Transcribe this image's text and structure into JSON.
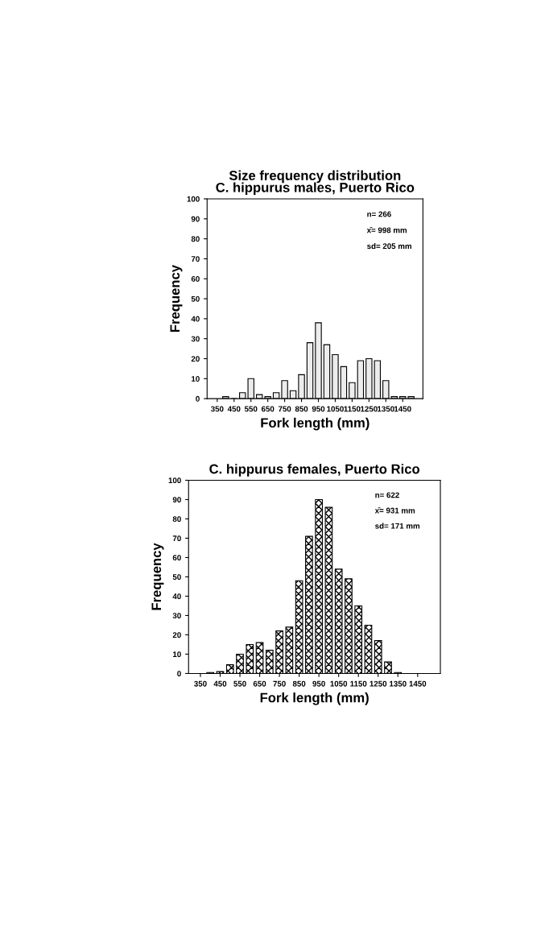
{
  "chart_data": [
    {
      "type": "bar",
      "title": "Size frequency distribution",
      "subtitle": "C. hippurus males, Puerto Rico",
      "xlabel": "Fork length (mm)",
      "ylabel": "Frequency",
      "x": [
        400,
        450,
        500,
        550,
        600,
        650,
        700,
        750,
        800,
        850,
        900,
        950,
        1000,
        1050,
        1100,
        1150,
        1200,
        1250,
        1300,
        1350,
        1400,
        1450,
        1500
      ],
      "values": [
        1,
        0,
        3,
        10,
        2,
        1,
        3,
        9,
        4,
        12,
        28,
        38,
        27,
        22,
        16,
        8,
        19,
        20,
        19,
        9,
        1,
        1,
        1
      ],
      "color": "#ececec",
      "xlim": [
        290,
        1570
      ],
      "xticks": [
        350,
        450,
        550,
        650,
        750,
        850,
        950,
        1050,
        1150,
        1250,
        1350,
        1450
      ],
      "ylim": [
        0,
        100
      ],
      "yticks": [
        0,
        10,
        20,
        30,
        40,
        50,
        60,
        70,
        80,
        90,
        100
      ],
      "grid": false,
      "legend": false,
      "annotations": [
        "n= 266",
        "x̄= 998 mm",
        "sd= 205 mm"
      ]
    },
    {
      "type": "bar",
      "title": "C. hippurus females, Puerto Rico",
      "xlabel": "Fork length (mm)",
      "ylabel": "Frequency",
      "x": [
        400,
        450,
        500,
        550,
        600,
        650,
        700,
        750,
        800,
        850,
        900,
        950,
        1000,
        1050,
        1100,
        1150,
        1200,
        1250,
        1300,
        1350
      ],
      "values": [
        0.5,
        1,
        4.5,
        10,
        15,
        16,
        12,
        22,
        24,
        48,
        71,
        90,
        86,
        54,
        49,
        35,
        25,
        17,
        6,
        0.5
      ],
      "color": "#000000",
      "xlim": [
        290,
        1565
      ],
      "xticks": [
        350,
        450,
        550,
        650,
        750,
        850,
        950,
        1050,
        1150,
        1250,
        1350,
        1450
      ],
      "ylim": [
        0,
        100
      ],
      "yticks": [
        0,
        10,
        20,
        30,
        40,
        50,
        60,
        70,
        80,
        90,
        100
      ],
      "grid": false,
      "legend": false,
      "annotations": [
        "n= 622",
        "x̄= 931 mm",
        "sd= 171 mm"
      ]
    }
  ]
}
